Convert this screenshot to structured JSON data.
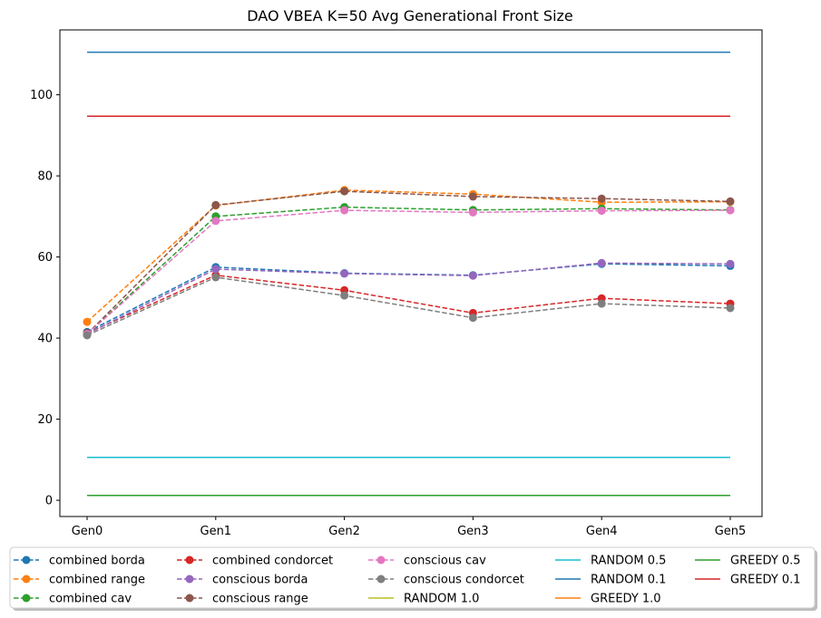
{
  "chart_data": {
    "type": "line",
    "title": "DAO VBEA K=50 Avg Generational Front Size",
    "xlabel": "",
    "ylabel": "",
    "categories": [
      "Gen0",
      "Gen1",
      "Gen2",
      "Gen3",
      "Gen4",
      "Gen5"
    ],
    "ylim": [
      -4,
      116
    ],
    "yticks": [
      0,
      20,
      40,
      60,
      80,
      100
    ],
    "grid": false,
    "legend_position": "bottom",
    "series": [
      {
        "name": "combined borda",
        "color": "#1f77b4",
        "style": "dashed-marker",
        "values": [
          41.5,
          57.5,
          56.0,
          55.5,
          58.3,
          57.8
        ]
      },
      {
        "name": "combined range",
        "color": "#ff7f0e",
        "style": "dashed-marker",
        "values": [
          44.0,
          72.7,
          76.5,
          75.5,
          73.5,
          73.6
        ]
      },
      {
        "name": "combined cav",
        "color": "#2ca02c",
        "style": "dashed-marker",
        "values": [
          41.0,
          70.0,
          72.3,
          71.6,
          71.9,
          71.6
        ]
      },
      {
        "name": "combined condorcet",
        "color": "#d62728",
        "style": "dashed-marker",
        "values": [
          41.2,
          55.5,
          51.8,
          46.2,
          49.8,
          48.5
        ]
      },
      {
        "name": "conscious borda",
        "color": "#9467bd",
        "style": "dashed-marker",
        "values": [
          41.0,
          57.0,
          55.9,
          55.4,
          58.5,
          58.3
        ]
      },
      {
        "name": "conscious range",
        "color": "#8c564b",
        "style": "dashed-marker",
        "values": [
          41.0,
          72.8,
          76.2,
          74.9,
          74.4,
          73.7
        ]
      },
      {
        "name": "conscious cav",
        "color": "#e377c2",
        "style": "dashed-marker",
        "values": [
          41.0,
          68.9,
          71.5,
          71.0,
          71.4,
          71.5
        ]
      },
      {
        "name": "conscious condorcet",
        "color": "#7f7f7f",
        "style": "dashed-marker",
        "values": [
          40.7,
          55.0,
          50.5,
          45.0,
          48.5,
          47.4
        ]
      },
      {
        "name": "RANDOM 1.0",
        "color": "#bcbd22",
        "style": "solid",
        "values": [
          1.2,
          1.2,
          1.2,
          1.2,
          1.2,
          1.2
        ]
      },
      {
        "name": "RANDOM 0.5",
        "color": "#17becf",
        "style": "solid",
        "values": [
          10.6,
          10.6,
          10.6,
          10.6,
          10.6,
          10.6
        ]
      },
      {
        "name": "RANDOM 0.1",
        "color": "#1f77b4",
        "style": "solid",
        "values": [
          110.5,
          110.5,
          110.5,
          110.5,
          110.5,
          110.5
        ]
      },
      {
        "name": "GREEDY 1.0",
        "color": "#ff7f0e",
        "style": "solid",
        "values": [
          1.2,
          1.2,
          1.2,
          1.2,
          1.2,
          1.2
        ]
      },
      {
        "name": "GREEDY 0.5",
        "color": "#2ca02c",
        "style": "solid",
        "values": [
          1.2,
          1.2,
          1.2,
          1.2,
          1.2,
          1.2
        ]
      },
      {
        "name": "GREEDY 0.1",
        "color": "#d62728",
        "style": "solid",
        "values": [
          94.7,
          94.7,
          94.7,
          94.7,
          94.7,
          94.7
        ]
      }
    ]
  }
}
